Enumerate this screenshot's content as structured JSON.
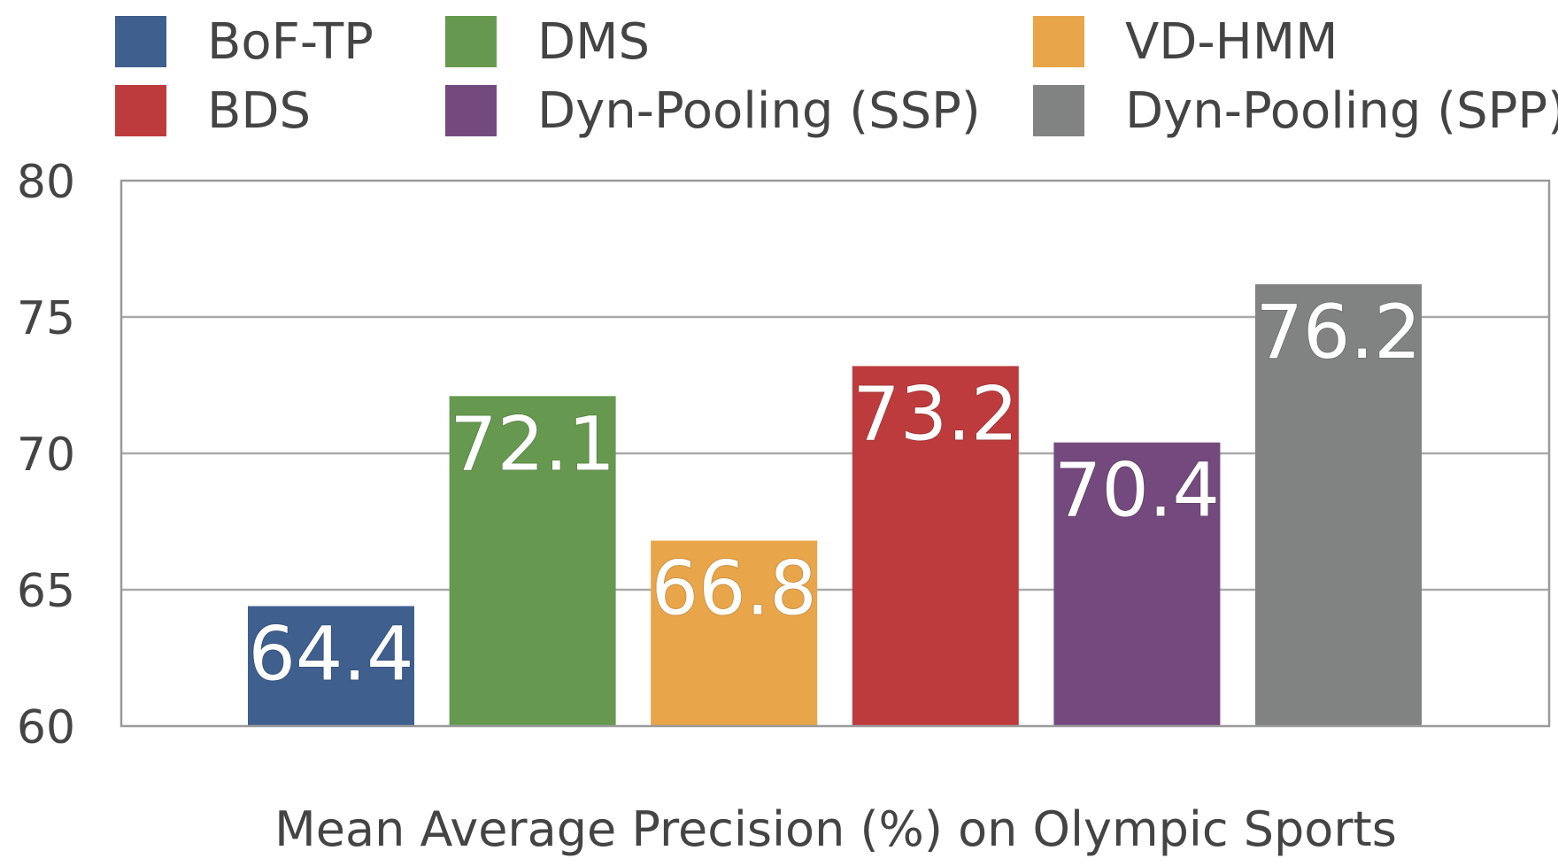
{
  "chart_data": {
    "type": "bar",
    "categories": [
      "BoF-TP",
      "DMS",
      "VD-HMM",
      "BDS",
      "Dyn-Pooling (SSP)",
      "Dyn-Pooling (SPP)"
    ],
    "values": [
      64.4,
      72.1,
      66.8,
      73.2,
      70.4,
      76.2
    ],
    "value_labels": [
      "64.4",
      "72.1",
      "66.8",
      "73.2",
      "70.4",
      "76.2"
    ],
    "colors": [
      "#3F5F8E",
      "#66994F",
      "#E9A54A",
      "#BE3B3D",
      "#744A7E",
      "#808382"
    ],
    "title": "",
    "xlabel": "Mean Average Precision (%) on Olympic Sports",
    "ylabel": "",
    "ylim": [
      60,
      80
    ],
    "yticks": [
      60,
      65,
      70,
      75,
      80
    ],
    "grid": true,
    "legend": {
      "placement": "top",
      "entries": [
        "BoF-TP",
        "DMS",
        "VD-HMM",
        "BDS",
        "Dyn-Pooling (SSP)",
        "Dyn-Pooling (SPP)"
      ]
    }
  }
}
